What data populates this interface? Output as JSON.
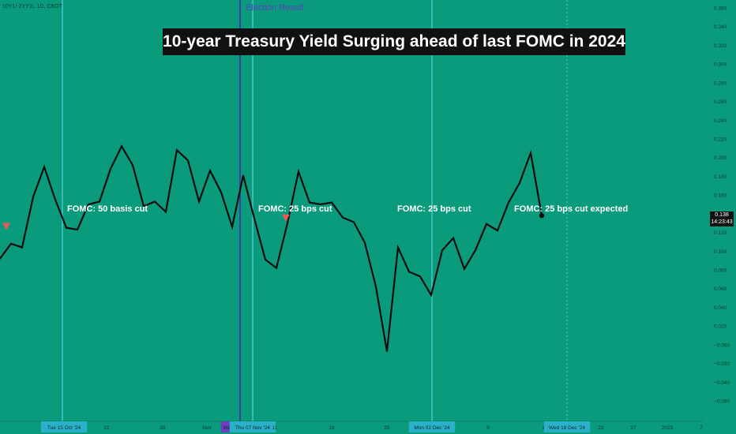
{
  "header": {
    "ticker_label": "10Y1!-2YY1!, 1D, CBOT",
    "title": "10-year Treasury Yield Surging ahead of last FOMC in 2024",
    "event_label": "Election Result"
  },
  "annotations": [
    {
      "text": "FOMC: 50 basis cut"
    },
    {
      "text": "FOMC: 25 bps cut"
    },
    {
      "text": "FOMC: 25 bps cut"
    },
    {
      "text": "FOMC: 25 bps cut expected"
    }
  ],
  "price_badge": {
    "value": "0.138",
    "countdown": "14:23:43"
  },
  "colors": {
    "background": "#0a9b7c",
    "line": "#0d0d0d",
    "vertical_line": "#56cfe1",
    "event_line": "#3b3fa6",
    "marker": "#e85a5a",
    "title_bg": "#111111"
  },
  "chart_data": {
    "type": "line",
    "title": "10-year Treasury Yield Surging ahead of last FOMC in 2024",
    "xlabel": "",
    "ylabel": "",
    "ylim": [
      -0.07,
      0.365
    ],
    "grid": false,
    "y_ticks": [
      "0.360",
      "0.340",
      "0.320",
      "0.300",
      "0.280",
      "0.260",
      "0.240",
      "0.220",
      "0.200",
      "0.180",
      "0.160",
      "0.140",
      "0.120",
      "0.100",
      "0.080",
      "0.060",
      "0.040",
      "0.020",
      "−0.000",
      "−0.020",
      "−0.040",
      "−0.060"
    ],
    "x_tick_labels": [
      "Tue 15 Oct '24",
      "21",
      "28",
      "Nov",
      "Wed",
      "Thu 07 Nov '24",
      "11",
      "18",
      "25",
      "Mon 02 Dec '24",
      "9",
      "16",
      "Wed 18 Dec '24",
      "23",
      "27",
      "2025",
      "7"
    ],
    "series": [
      {
        "values": [
          0.092,
          0.108,
          0.104,
          0.158,
          0.19,
          0.155,
          0.125,
          0.123,
          0.15,
          0.153,
          0.188,
          0.212,
          0.192,
          0.148,
          0.153,
          0.142,
          0.208,
          0.197,
          0.153,
          0.186,
          0.163,
          0.126,
          0.181,
          0.135,
          0.091,
          0.082,
          0.13,
          0.185,
          0.152,
          0.15,
          0.152,
          0.136,
          0.131,
          0.109,
          0.062,
          -0.007,
          0.104,
          0.078,
          0.073,
          0.053,
          0.101,
          0.114,
          0.081,
          0.101,
          0.129,
          0.122,
          0.152,
          0.173,
          0.205,
          0.138
        ]
      }
    ],
    "markers": [
      {
        "type": "down-triangle",
        "index": 0,
        "value": 0.126
      },
      {
        "type": "down-triangle",
        "index": 24,
        "value": 0.135
      }
    ],
    "last_point": {
      "value": 0.138
    }
  }
}
